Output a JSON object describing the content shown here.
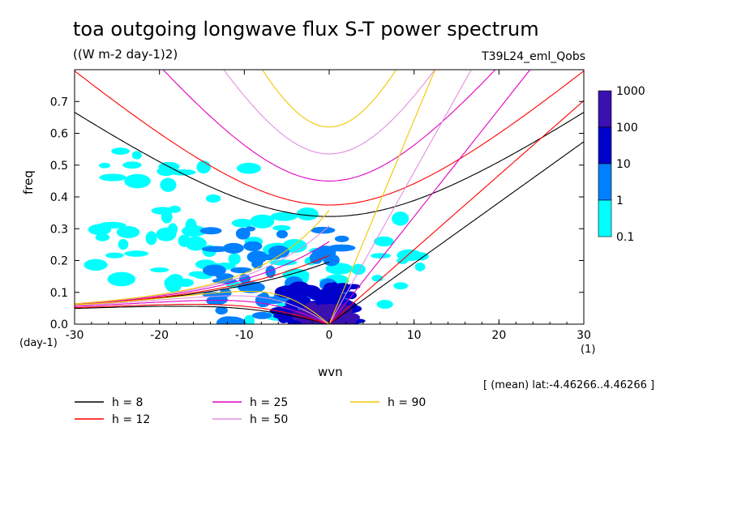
{
  "chart_data": {
    "type": "heatmap",
    "title": "toa outgoing longwave flux S-T power spectrum",
    "subtitle": "((W m-2 day-1)2)",
    "run_label": "T39L24_eml_Qobs",
    "xlabel": "wvn",
    "ylabel": "freq",
    "x_unit": "(1)",
    "y_unit": "(day-1)",
    "xlim": [
      -30,
      30
    ],
    "ylim": [
      0,
      0.8
    ],
    "x_ticks": [
      "-30",
      "-20",
      "-10",
      "0",
      "10",
      "20",
      "30"
    ],
    "y_ticks": [
      "0.0",
      "0.1",
      "0.2",
      "0.3",
      "0.4",
      "0.5",
      "0.6",
      "0.7"
    ],
    "colorbar": {
      "labels": [
        "1000",
        "100",
        "10",
        "1",
        "0.1"
      ],
      "levels": [
        0.1,
        1,
        10,
        100,
        1000
      ],
      "colors": [
        "#00ffff",
        "#0080ff",
        "#0000cc",
        "#3a10b0"
      ]
    },
    "dispersion_curves": [
      {
        "label": "h =  8",
        "h": 8,
        "color": "#000000"
      },
      {
        "label": "h = 12",
        "h": 12,
        "color": "#ff0000"
      },
      {
        "label": "h = 25",
        "h": 25,
        "color": "#e000c0"
      },
      {
        "label": "h = 50",
        "h": 50,
        "color": "#e090e0"
      },
      {
        "label": "h = 90",
        "h": 90,
        "color": "#f0c800"
      }
    ],
    "annotation": "[ (mean) lat:-4.46266..4.46266 ]",
    "spectrum_regions": [
      {
        "x": [
          -28,
          -8
        ],
        "y": [
          0.12,
          0.55
        ],
        "level": 0.1
      },
      {
        "x": [
          -20,
          12
        ],
        "y": [
          0.0,
          0.35
        ],
        "level": 0.1
      },
      {
        "x": [
          -14,
          2
        ],
        "y": [
          0.0,
          0.3
        ],
        "level": 1
      },
      {
        "x": [
          -6,
          3
        ],
        "y": [
          0.0,
          0.12
        ],
        "level": 10
      },
      {
        "x": [
          -3,
          2
        ],
        "y": [
          0.0,
          0.05
        ],
        "level": 100
      }
    ]
  }
}
